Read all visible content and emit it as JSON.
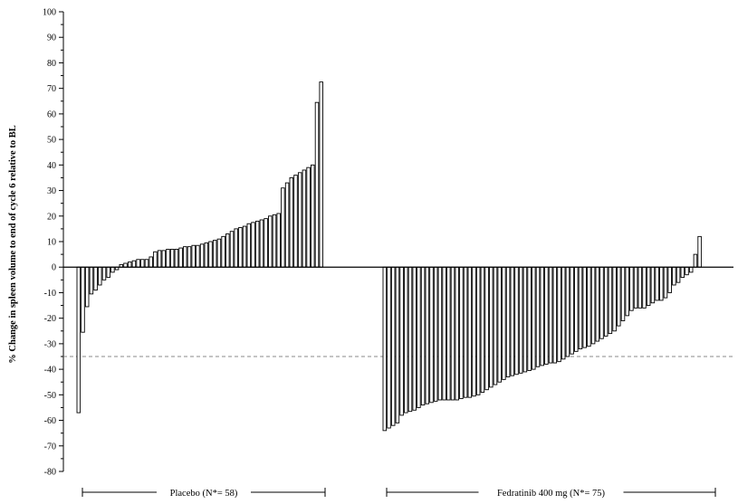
{
  "chart_data": {
    "type": "bar",
    "title": "",
    "ylabel": "% Change in spleen volume to end of cycle 6 relative to BL",
    "xlabel": "",
    "ylim": [
      -80,
      100
    ],
    "yticks": [
      100,
      90,
      80,
      70,
      60,
      50,
      40,
      30,
      20,
      10,
      0,
      -10,
      -20,
      -30,
      -40,
      -50,
      -60,
      -70,
      -80
    ],
    "reference_line": {
      "y": -35,
      "style": "dashed"
    },
    "grid": false,
    "groups": [
      {
        "label": "Placebo (N*= 58)",
        "values": [
          -57,
          -25.5,
          -15.5,
          -10.5,
          -9,
          -7,
          -5,
          -4,
          -2,
          -1,
          1,
          1.5,
          2,
          2.5,
          3,
          3,
          3,
          4,
          6,
          6.5,
          6.5,
          7,
          7,
          7,
          7.5,
          8,
          8,
          8.5,
          8.5,
          9,
          9.5,
          10,
          10.5,
          11,
          12,
          13,
          14,
          15,
          15.5,
          16,
          17,
          17.5,
          18,
          18.5,
          19,
          20,
          20.5,
          21,
          31,
          33,
          35,
          36,
          37,
          38,
          39,
          40,
          64.5,
          72.5
        ]
      },
      {
        "label": "Fedratinib 400 mg (N*= 75)",
        "values": [
          -64,
          -63,
          -62,
          -61,
          -58,
          -57,
          -56.5,
          -56,
          -55,
          -54,
          -53.5,
          -53,
          -52.5,
          -52,
          -52,
          -52,
          -52,
          -52,
          -51.5,
          -51,
          -51,
          -50.5,
          -50,
          -49,
          -48,
          -47,
          -46,
          -45,
          -44,
          -43,
          -42.5,
          -42,
          -41.5,
          -41,
          -40.5,
          -40,
          -39,
          -38.5,
          -38,
          -37.5,
          -37.5,
          -37,
          -36,
          -35,
          -34,
          -33,
          -32,
          -31.5,
          -31,
          -30,
          -29,
          -28,
          -27,
          -26,
          -25,
          -23,
          -21,
          -19,
          -17,
          -16,
          -16,
          -16,
          -15,
          -14,
          -13,
          -13,
          -12,
          -10,
          -7,
          -6,
          -4,
          -3,
          -2,
          5,
          12
        ]
      }
    ]
  }
}
